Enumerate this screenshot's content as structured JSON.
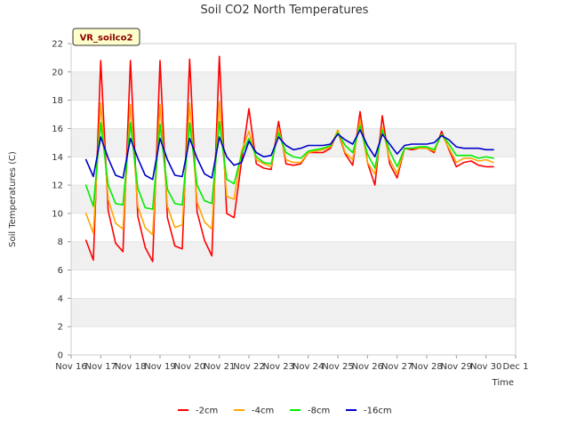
{
  "chart_data": {
    "type": "line",
    "title": "Soil CO2 North Temperatures",
    "xlabel": "Time",
    "ylabel": "Soil Temperatures (C)",
    "badge": "VR_soilco2",
    "ylim": [
      0,
      22
    ],
    "yticks": [
      0,
      2,
      4,
      6,
      8,
      10,
      12,
      14,
      16,
      18,
      20,
      22
    ],
    "xlim": [
      "2023-11-16",
      "2023-12-01"
    ],
    "xtick_labels": [
      "Nov 16",
      "Nov 17",
      "Nov 18",
      "Nov 19",
      "Nov 20",
      "Nov 21",
      "Nov 22",
      "Nov 23",
      "Nov 24",
      "Nov 25",
      "Nov 26",
      "Nov 27",
      "Nov 28",
      "Nov 29",
      "Nov 30",
      "Dec 1"
    ],
    "grid": "horizontal bands",
    "legend_position": "bottom-center",
    "x_dates": [
      "2023-11-16 12:00",
      "2023-11-16 18:00",
      "2023-11-17 00:00",
      "2023-11-17 06:00",
      "2023-11-17 12:00",
      "2023-11-17 18:00",
      "2023-11-18 00:00",
      "2023-11-18 06:00",
      "2023-11-18 12:00",
      "2023-11-18 18:00",
      "2023-11-19 00:00",
      "2023-11-19 06:00",
      "2023-11-19 12:00",
      "2023-11-19 18:00",
      "2023-11-20 00:00",
      "2023-11-20 06:00",
      "2023-11-20 12:00",
      "2023-11-20 18:00",
      "2023-11-21 00:00",
      "2023-11-21 06:00",
      "2023-11-21 12:00",
      "2023-11-21 18:00",
      "2023-11-22 00:00",
      "2023-11-22 06:00",
      "2023-11-22 12:00",
      "2023-11-22 18:00",
      "2023-11-23 00:00",
      "2023-11-23 06:00",
      "2023-11-23 12:00",
      "2023-11-23 18:00",
      "2023-11-24 00:00",
      "2023-11-24 06:00",
      "2023-11-24 12:00",
      "2023-11-24 18:00",
      "2023-11-25 00:00",
      "2023-11-25 06:00",
      "2023-11-25 12:00",
      "2023-11-25 18:00",
      "2023-11-26 00:00",
      "2023-11-26 06:00",
      "2023-11-26 12:00",
      "2023-11-26 18:00",
      "2023-11-27 00:00",
      "2023-11-27 06:00",
      "2023-11-27 12:00",
      "2023-11-27 18:00",
      "2023-11-28 00:00",
      "2023-11-28 06:00",
      "2023-11-28 12:00",
      "2023-11-28 18:00",
      "2023-11-29 00:00",
      "2023-11-29 06:00",
      "2023-11-29 12:00",
      "2023-11-29 18:00",
      "2023-11-30 00:00",
      "2023-11-30 06:00"
    ],
    "series": [
      {
        "name": "-2cm",
        "color": "#ff0000",
        "values": [
          8.1,
          6.7,
          20.8,
          10.2,
          7.9,
          7.3,
          20.8,
          9.8,
          7.6,
          6.6,
          20.8,
          9.7,
          7.7,
          7.5,
          20.9,
          10.1,
          8.1,
          7.0,
          21.1,
          10.0,
          9.7,
          13.7,
          17.4,
          13.5,
          13.2,
          13.1,
          16.5,
          13.5,
          13.4,
          13.5,
          14.3,
          14.3,
          14.3,
          14.6,
          15.8,
          14.2,
          13.4,
          17.2,
          13.6,
          12.0,
          16.9,
          13.5,
          12.5,
          14.6,
          14.5,
          14.6,
          14.6,
          14.3,
          15.8,
          14.5,
          13.3,
          13.6,
          13.7,
          13.4,
          13.3,
          13.3
        ]
      },
      {
        "name": "-4cm",
        "color": "#ffa500",
        "values": [
          10.0,
          8.6,
          17.8,
          11.0,
          9.3,
          8.9,
          17.7,
          10.5,
          9.0,
          8.5,
          17.7,
          10.5,
          9.0,
          9.2,
          17.8,
          10.8,
          9.4,
          8.9,
          17.9,
          11.2,
          11.0,
          14.4,
          15.8,
          13.8,
          13.5,
          13.3,
          16.0,
          13.8,
          13.6,
          13.6,
          14.3,
          14.4,
          14.5,
          14.7,
          15.9,
          14.3,
          13.8,
          16.6,
          13.6,
          12.8,
          16.1,
          13.8,
          12.8,
          14.6,
          14.6,
          14.6,
          14.6,
          14.4,
          15.6,
          14.6,
          13.6,
          13.9,
          13.9,
          13.7,
          13.8,
          13.6
        ]
      },
      {
        "name": "-8cm",
        "color": "#00ee00",
        "values": [
          12.0,
          10.5,
          16.4,
          12.0,
          10.7,
          10.6,
          16.4,
          11.8,
          10.4,
          10.3,
          16.3,
          11.7,
          10.7,
          10.6,
          16.4,
          12.0,
          10.9,
          10.7,
          16.5,
          12.4,
          12.1,
          14.2,
          15.3,
          14.0,
          13.6,
          13.5,
          15.7,
          14.3,
          14.0,
          13.9,
          14.4,
          14.5,
          14.6,
          14.8,
          15.7,
          14.8,
          14.3,
          16.2,
          14.2,
          13.2,
          15.9,
          14.4,
          13.3,
          14.6,
          14.6,
          14.7,
          14.7,
          14.5,
          15.6,
          14.9,
          14.1,
          14.1,
          14.1,
          13.9,
          14.0,
          13.9
        ]
      },
      {
        "name": "-16cm",
        "color": "#0000cc",
        "values": [
          13.8,
          12.6,
          15.4,
          13.9,
          12.7,
          12.5,
          15.3,
          13.9,
          12.7,
          12.4,
          15.3,
          13.8,
          12.7,
          12.6,
          15.3,
          13.9,
          12.8,
          12.5,
          15.4,
          14.0,
          13.4,
          13.6,
          15.1,
          14.3,
          14.0,
          14.1,
          15.4,
          14.8,
          14.5,
          14.6,
          14.8,
          14.8,
          14.8,
          14.9,
          15.6,
          15.2,
          14.9,
          15.9,
          14.8,
          14.0,
          15.6,
          14.9,
          14.2,
          14.8,
          14.9,
          14.9,
          14.9,
          15.0,
          15.5,
          15.2,
          14.7,
          14.6,
          14.6,
          14.6,
          14.5,
          14.5
        ]
      }
    ]
  }
}
